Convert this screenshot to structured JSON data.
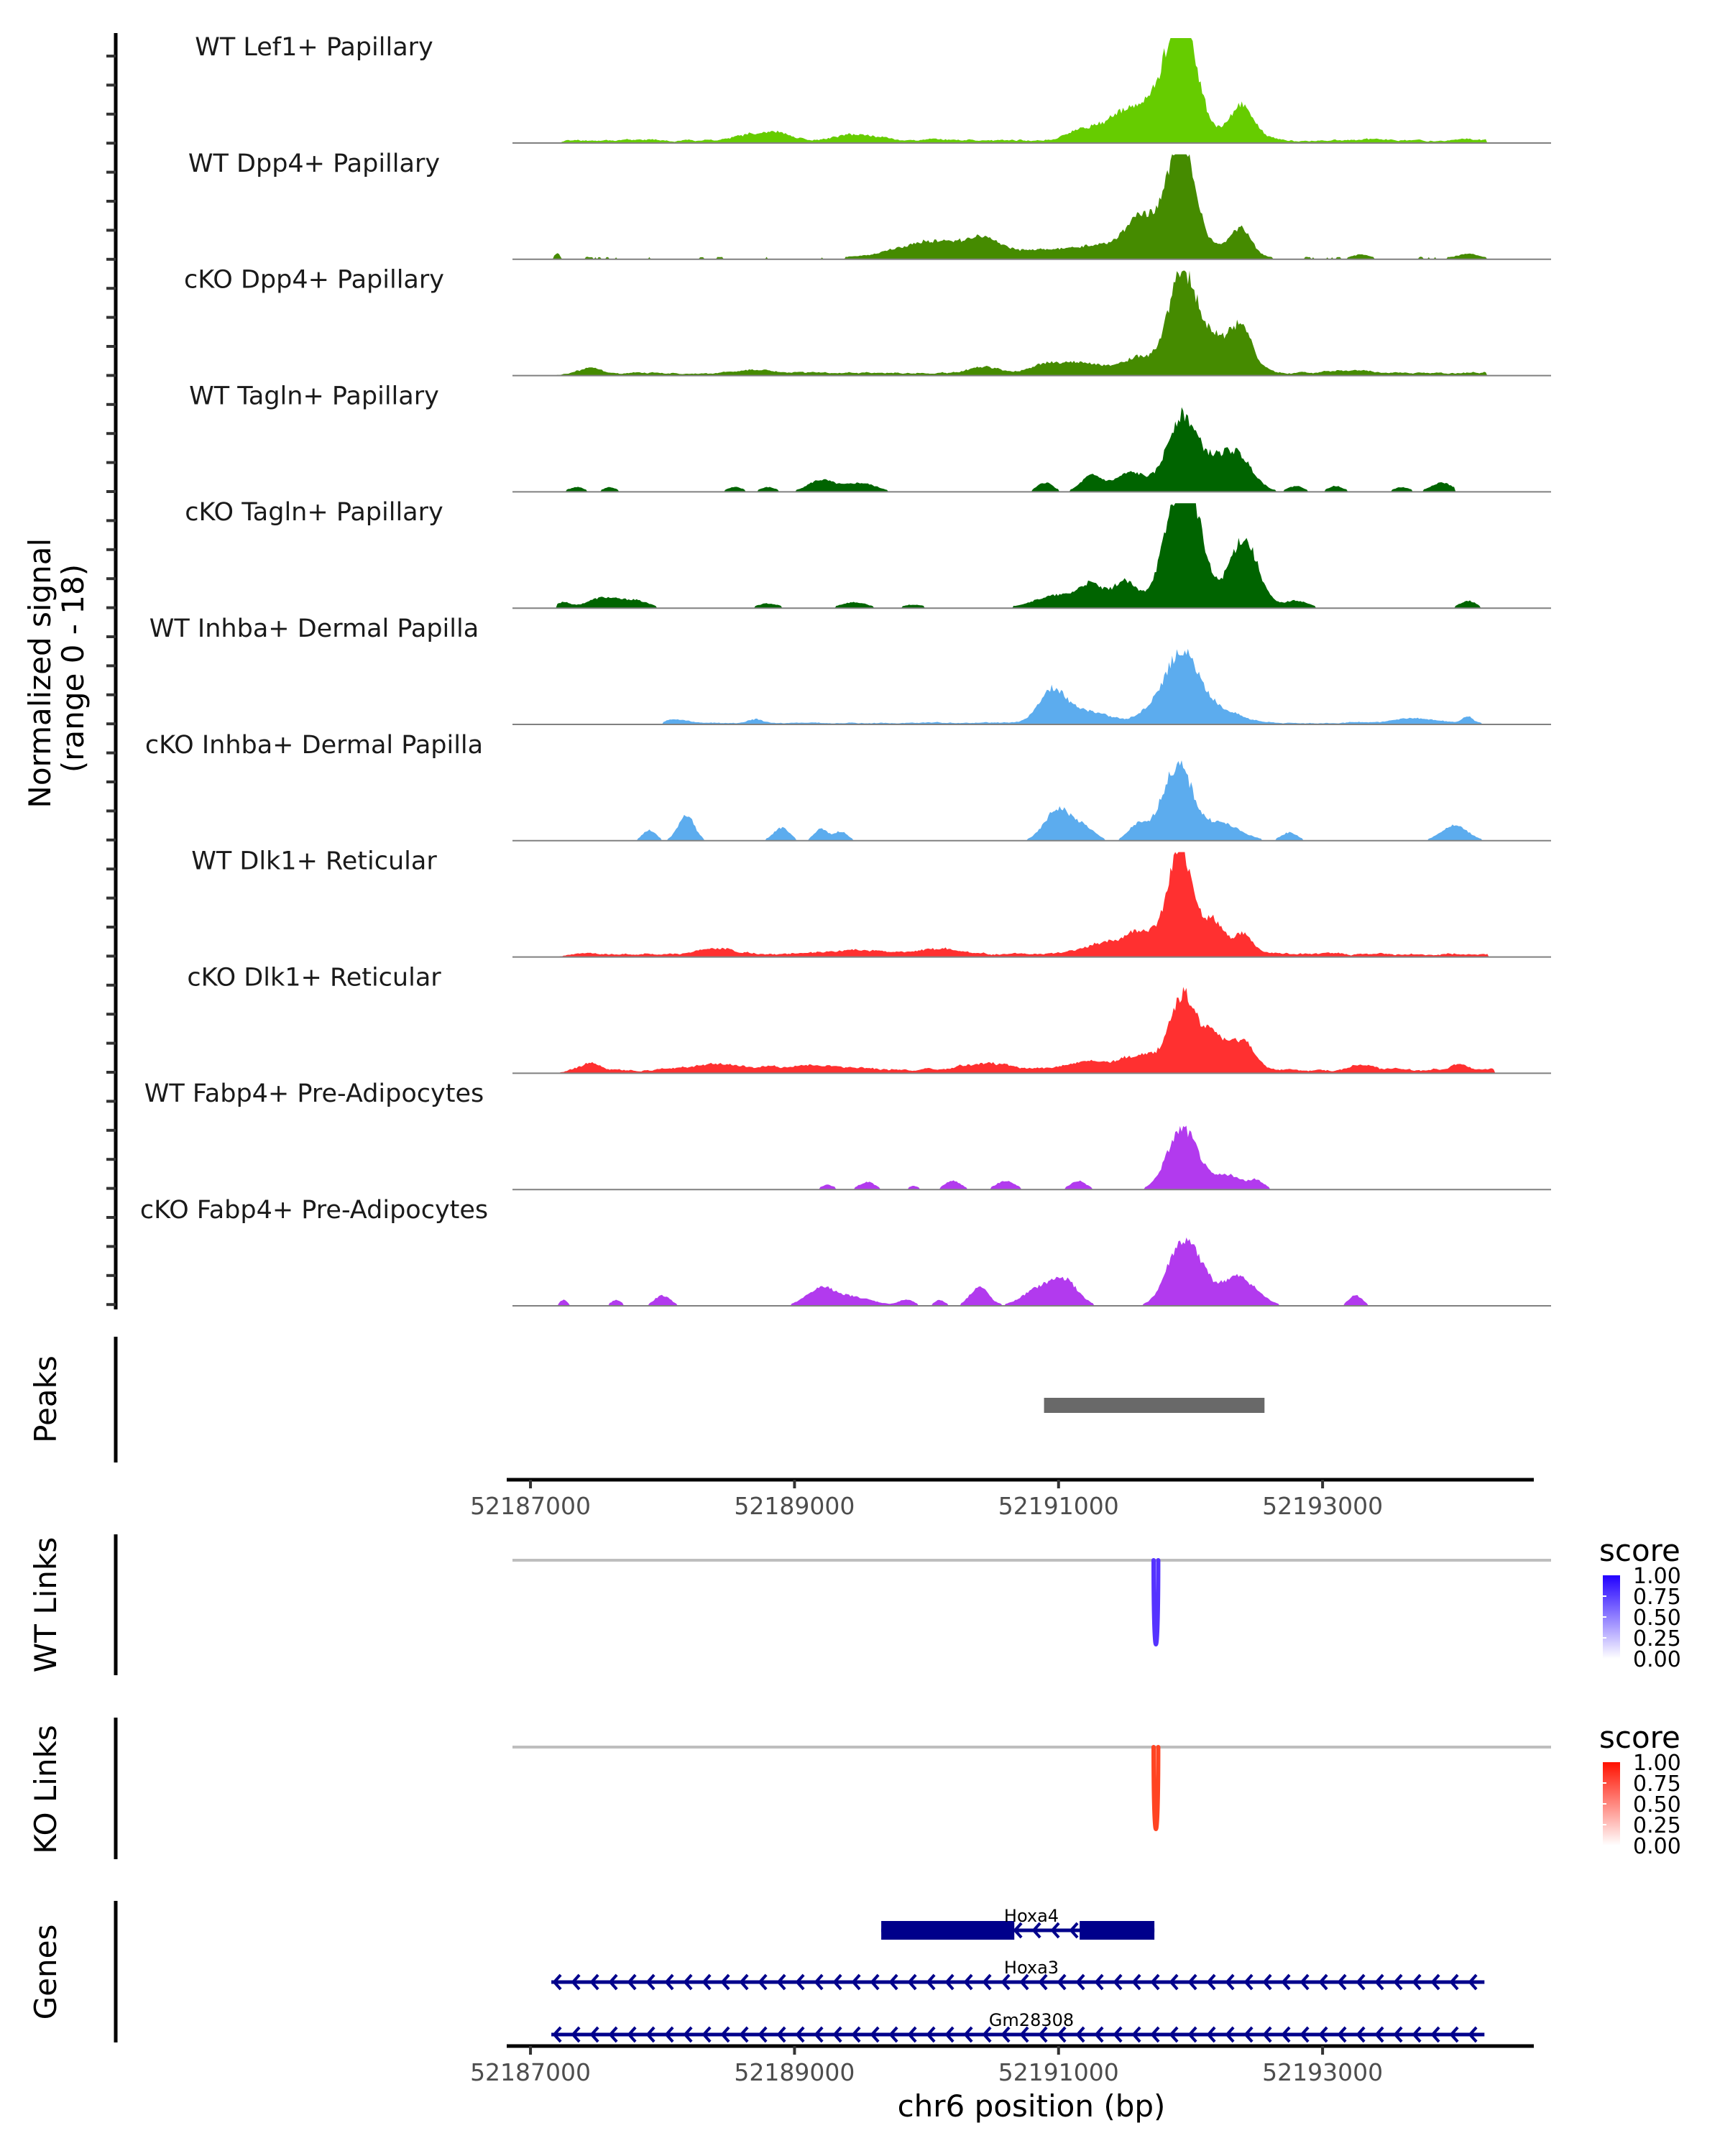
{
  "chart_data": {
    "type": "area",
    "title": "",
    "chromosome": "chr6",
    "xlabel": "chr6 position (bp)",
    "xlim": [
      52186820,
      52194600
    ],
    "x_ticks": [
      52187000,
      52189000,
      52191000,
      52193000
    ],
    "x_tick_labels": [
      "52187000",
      "52189000",
      "52191000",
      "52193000"
    ],
    "coverage": {
      "ylabel_line1": "Normalized signal",
      "ylabel_line2": "(range 0 - 18)",
      "ylim": [
        0,
        18
      ],
      "tracks": [
        {
          "name": "WT Lef1+ Papillary",
          "color": "#66CC00",
          "extent": [
            52187180,
            52194240
          ],
          "noise": 0.7,
          "seed": 11,
          "peaks": [
            [
              52191930,
              110,
              17.8
            ],
            [
              52191780,
              220,
              5.5
            ],
            [
              52192390,
              90,
              6.0
            ],
            [
              52191450,
              160,
              2.8
            ],
            [
              52191150,
              100,
              1.2
            ],
            [
              52188700,
              120,
              1.2
            ],
            [
              52188900,
              90,
              1.0
            ],
            [
              52189500,
              150,
              0.9
            ]
          ]
        },
        {
          "name": "WT Dpp4+ Papillary",
          "color": "#458B00",
          "extent": [
            52187180,
            52194240
          ],
          "noise": 0.4,
          "seed": 23,
          "sparse": true,
          "peaks": [
            [
              52191930,
              90,
              16.5
            ],
            [
              52191820,
              240,
              6.0
            ],
            [
              52192380,
              80,
              4.6
            ],
            [
              52191600,
              90,
              3.0
            ],
            [
              52191250,
              180,
              1.8
            ],
            [
              52190450,
              140,
              2.8
            ],
            [
              52190150,
              200,
              1.8
            ],
            [
              52189900,
              220,
              1.6
            ],
            [
              52190850,
              150,
              1.2
            ],
            [
              52187200,
              20,
              1.0
            ],
            [
              52193300,
              60,
              0.6
            ],
            [
              52194100,
              60,
              0.8
            ]
          ]
        },
        {
          "name": "cKO Dpp4+ Papillary",
          "color": "#458B00",
          "extent": [
            52187180,
            52194240
          ],
          "noise": 0.6,
          "seed": 37,
          "peaks": [
            [
              52191930,
              100,
              12.8
            ],
            [
              52192100,
              200,
              6.5
            ],
            [
              52192390,
              80,
              6.0
            ],
            [
              52191600,
              110,
              2.0
            ],
            [
              52191200,
              220,
              1.6
            ],
            [
              52190900,
              120,
              1.2
            ],
            [
              52190450,
              120,
              1.0
            ],
            [
              52187450,
              80,
              0.9
            ],
            [
              52188700,
              120,
              0.7
            ],
            [
              52193200,
              140,
              0.4
            ]
          ]
        },
        {
          "name": "WT Tagln+ Papillary",
          "color": "#006400",
          "extent": [
            52187200,
            52194000
          ],
          "noise": 0.0,
          "seed": 41,
          "sparse": true,
          "peaks": [
            [
              52191930,
              110,
              12.5
            ],
            [
              52192350,
              120,
              6.0
            ],
            [
              52192150,
              120,
              3.5
            ],
            [
              52191550,
              120,
              3.3
            ],
            [
              52191250,
              80,
              2.7
            ],
            [
              52190900,
              60,
              1.6
            ],
            [
              52189200,
              100,
              2.0
            ],
            [
              52189500,
              120,
              1.5
            ],
            [
              52187350,
              60,
              0.8
            ],
            [
              52187600,
              50,
              0.8
            ],
            [
              52188550,
              60,
              0.8
            ],
            [
              52188800,
              60,
              0.8
            ],
            [
              52192800,
              60,
              1.0
            ],
            [
              52193100,
              60,
              1.0
            ],
            [
              52193900,
              80,
              1.6
            ],
            [
              52193600,
              60,
              0.8
            ]
          ]
        },
        {
          "name": "cKO Tagln+ Papillary",
          "color": "#006400",
          "extent": [
            52187200,
            52194200
          ],
          "noise": 0.0,
          "seed": 53,
          "sparse": true,
          "peaks": [
            [
              52191990,
              110,
              14.8
            ],
            [
              52191880,
              120,
              11.0
            ],
            [
              52192400,
              110,
              12.0
            ],
            [
              52191500,
              90,
              4.5
            ],
            [
              52191250,
              90,
              3.4
            ],
            [
              52191000,
              180,
              2.2
            ],
            [
              52187250,
              50,
              1.0
            ],
            [
              52187550,
              120,
              1.8
            ],
            [
              52187800,
              100,
              1.2
            ],
            [
              52189450,
              100,
              1.0
            ],
            [
              52188800,
              80,
              0.8
            ],
            [
              52192800,
              90,
              1.3
            ],
            [
              52194100,
              60,
              1.3
            ],
            [
              52189900,
              80,
              0.6
            ]
          ]
        },
        {
          "name": "WT Inhba+ Dermal Papilla",
          "color": "#5CACEE",
          "extent": [
            52188000,
            52194200
          ],
          "noise": 0.35,
          "seed": 67,
          "peaks": [
            [
              52191930,
              120,
              11.2
            ],
            [
              52192180,
              180,
              2.5
            ],
            [
              52190950,
              100,
              5.2
            ],
            [
              52191200,
              180,
              2.0
            ],
            [
              52191700,
              100,
              1.8
            ],
            [
              52188100,
              80,
              0.8
            ],
            [
              52188700,
              60,
              0.7
            ],
            [
              52193700,
              150,
              0.8
            ],
            [
              52194100,
              40,
              1.2
            ]
          ]
        },
        {
          "name": "cKO Inhba+ Dermal Papilla",
          "color": "#5CACEE",
          "extent": [
            52187800,
            52194200
          ],
          "noise": 0.0,
          "seed": 79,
          "sparse": true,
          "peaks": [
            [
              52191930,
              90,
              10.5
            ],
            [
              52191800,
              80,
              5.0
            ],
            [
              52192200,
              160,
              3.2
            ],
            [
              52191000,
              100,
              5.5
            ],
            [
              52191200,
              80,
              2.0
            ],
            [
              52191600,
              70,
              2.8
            ],
            [
              52188180,
              60,
              4.5
            ],
            [
              52187900,
              50,
              1.8
            ],
            [
              52188900,
              60,
              2.2
            ],
            [
              52189200,
              50,
              2.0
            ],
            [
              52189350,
              50,
              1.6
            ],
            [
              52192750,
              60,
              1.4
            ],
            [
              52194000,
              100,
              2.6
            ]
          ]
        },
        {
          "name": "WT Dlk1+ Reticular",
          "color": "#FF3030",
          "extent": [
            52187150,
            52194250
          ],
          "noise": 0.7,
          "seed": 83,
          "peaks": [
            [
              52191930,
              90,
              15.5
            ],
            [
              52191850,
              200,
              3.0
            ],
            [
              52192180,
              70,
              5.0
            ],
            [
              52192390,
              80,
              3.5
            ],
            [
              52191600,
              100,
              2.2
            ],
            [
              52191350,
              150,
              1.8
            ],
            [
              52190100,
              150,
              0.9
            ],
            [
              52188400,
              120,
              1.0
            ],
            [
              52189500,
              200,
              0.6
            ]
          ]
        },
        {
          "name": "cKO Dlk1+ Reticular",
          "color": "#FF3030",
          "extent": [
            52187200,
            52194300
          ],
          "noise": 0.8,
          "seed": 97,
          "peaks": [
            [
              52191950,
              100,
              13.0
            ],
            [
              52192180,
              80,
              5.4
            ],
            [
              52192390,
              90,
              5.0
            ],
            [
              52191650,
              120,
              2.0
            ],
            [
              52191300,
              250,
              1.4
            ],
            [
              52190450,
              200,
              1.0
            ],
            [
              52189150,
              200,
              0.8
            ],
            [
              52188400,
              200,
              0.9
            ],
            [
              52187450,
              80,
              1.2
            ],
            [
              52193300,
              80,
              1.0
            ],
            [
              52194050,
              60,
              1.1
            ]
          ]
        },
        {
          "name": "WT Fabp4+ Pre-Adipocytes",
          "color": "#B23AEE",
          "extent": [
            52189100,
            52192600
          ],
          "noise": 0.0,
          "seed": 101,
          "sparse": true,
          "peaks": [
            [
              52191930,
              110,
              10.0
            ],
            [
              52192280,
              100,
              2.5
            ],
            [
              52192500,
              60,
              1.5
            ],
            [
              52192050,
              80,
              1.3
            ],
            [
              52189250,
              50,
              0.8
            ],
            [
              52189550,
              60,
              1.3
            ],
            [
              52190200,
              60,
              1.5
            ],
            [
              52190600,
              70,
              1.5
            ],
            [
              52191150,
              60,
              1.5
            ],
            [
              52189900,
              40,
              0.6
            ]
          ]
        },
        {
          "name": "cKO Fabp4+ Pre-Adipocytes",
          "color": "#B23AEE",
          "extent": [
            52187200,
            52193400
          ],
          "noise": 0.0,
          "seed": 113,
          "sparse": true,
          "peaks": [
            [
              52191930,
              110,
              10.5
            ],
            [
              52192350,
              140,
              5.0
            ],
            [
              52192080,
              70,
              3.0
            ],
            [
              52191050,
              100,
              4.0
            ],
            [
              52190850,
              120,
              2.8
            ],
            [
              52190400,
              70,
              3.2
            ],
            [
              52189200,
              110,
              2.8
            ],
            [
              52189450,
              150,
              1.4
            ],
            [
              52188000,
              60,
              1.8
            ],
            [
              52187650,
              40,
              1.0
            ],
            [
              52187250,
              30,
              1.0
            ],
            [
              52193250,
              50,
              1.8
            ],
            [
              52189850,
              60,
              1.0
            ],
            [
              52190100,
              40,
              1.0
            ]
          ]
        }
      ]
    },
    "peaks_track": {
      "label": "Peaks",
      "color": "#696969",
      "regions": [
        [
          52190890,
          52192560
        ]
      ]
    },
    "links": [
      {
        "label": "WT Links",
        "baseline_color": "#BEBEBE",
        "color": "#5533FF",
        "links": [
          {
            "start": 52191720,
            "end": 52191755,
            "score": 0.85
          }
        ],
        "legend": {
          "title": "score",
          "low_color": "#FFFFFF",
          "high_color": "#2200FF",
          "ticks": [
            "1.00",
            "0.75",
            "0.50",
            "0.25",
            "0.00"
          ]
        }
      },
      {
        "label": "KO Links",
        "baseline_color": "#BEBEBE",
        "color": "#FF4422",
        "links": [
          {
            "start": 52191720,
            "end": 52191755,
            "score": 0.9
          }
        ],
        "legend": {
          "title": "score",
          "low_color": "#FFFFFF",
          "high_color": "#FF1100",
          "ticks": [
            "1.00",
            "0.75",
            "0.50",
            "0.25",
            "0.00"
          ]
        }
      }
    ],
    "genes": {
      "label": "Genes",
      "color": "#00008B",
      "items": [
        {
          "name": "Hoxa4",
          "strand": "-",
          "start": 52189657,
          "end": 52191726,
          "exons": [
            [
              52189657,
              52190665
            ],
            [
              52191160,
              52191726
            ]
          ]
        },
        {
          "name": "Hoxa3",
          "strand": "-",
          "start": 52187158,
          "end": 52194226,
          "exons": []
        },
        {
          "name": "Gm28308",
          "strand": "-",
          "start": 52187158,
          "end": 52194226,
          "exons": []
        }
      ]
    }
  }
}
